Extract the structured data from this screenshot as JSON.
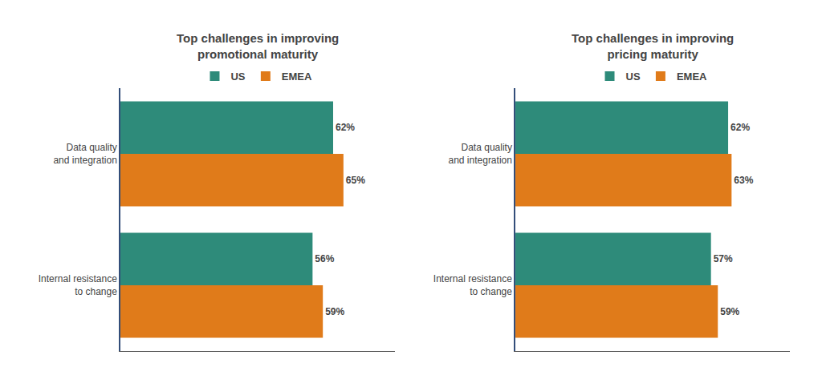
{
  "chart_data": [
    {
      "type": "bar",
      "orientation": "horizontal",
      "title": "Top challenges in improving\npromotional maturity",
      "categories": [
        "Data quality\nand integration",
        "Internal resistance\nto change"
      ],
      "series": [
        {
          "name": "US",
          "color": "#2E8B7A",
          "values": [
            62,
            56
          ],
          "value_labels": [
            "62%",
            "56%"
          ]
        },
        {
          "name": "EMEA",
          "color": "#E07B1A",
          "values": [
            65,
            59
          ],
          "value_labels": [
            "65%",
            "59%"
          ]
        }
      ],
      "xlim": [
        0,
        80
      ],
      "tick_labels": "y",
      "data_labels": true,
      "legend": "upper center",
      "grid": false
    },
    {
      "type": "bar",
      "orientation": "horizontal",
      "title": "Top challenges in improving\npricing maturity",
      "categories": [
        "Data quality\nand integration",
        "Internal resistance\nto change"
      ],
      "series": [
        {
          "name": "US",
          "color": "#2E8B7A",
          "values": [
            62,
            57
          ],
          "value_labels": [
            "62%",
            "57%"
          ]
        },
        {
          "name": "EMEA",
          "color": "#E07B1A",
          "values": [
            63,
            59
          ],
          "value_labels": [
            "63%",
            "59%"
          ]
        }
      ],
      "xlim": [
        0,
        80
      ],
      "tick_labels": "y",
      "data_labels": true,
      "legend": "upper center",
      "grid": false
    }
  ]
}
